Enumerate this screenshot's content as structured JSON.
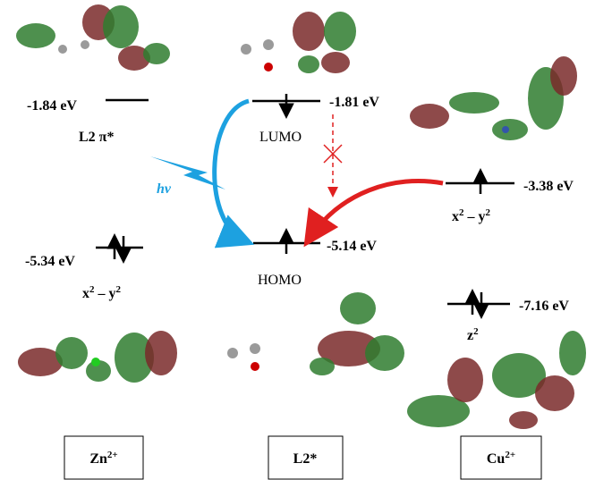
{
  "left": {
    "upper_level": {
      "energy": "-1.84 eV",
      "label": "L2 π*"
    },
    "lower_level": {
      "energy": "-5.34 eV",
      "label": [
        {
          "base": "x"
        },
        {
          "sup": "2"
        },
        {
          "base": " – y"
        },
        {
          "sup": "2"
        }
      ]
    },
    "box": [
      {
        "base": "Zn"
      },
      {
        "sup": "2+"
      }
    ]
  },
  "center": {
    "lumo": {
      "energy": "-1.81 eV",
      "label": "LUMO"
    },
    "homo": {
      "energy": "-5.14 eV",
      "label": "HOMO"
    },
    "excitation": "hv",
    "box": "L2*"
  },
  "right": {
    "upper_level": {
      "energy": "-3.38 eV",
      "label": [
        {
          "base": "x"
        },
        {
          "sup": "2"
        },
        {
          "base": " – y"
        },
        {
          "sup": "2"
        }
      ]
    },
    "lower_level": {
      "energy": "-7.16 eV",
      "label": [
        {
          "base": "z"
        },
        {
          "sup": "2"
        }
      ]
    },
    "box": [
      {
        "base": "Cu"
      },
      {
        "sup": "2+"
      }
    ]
  }
}
